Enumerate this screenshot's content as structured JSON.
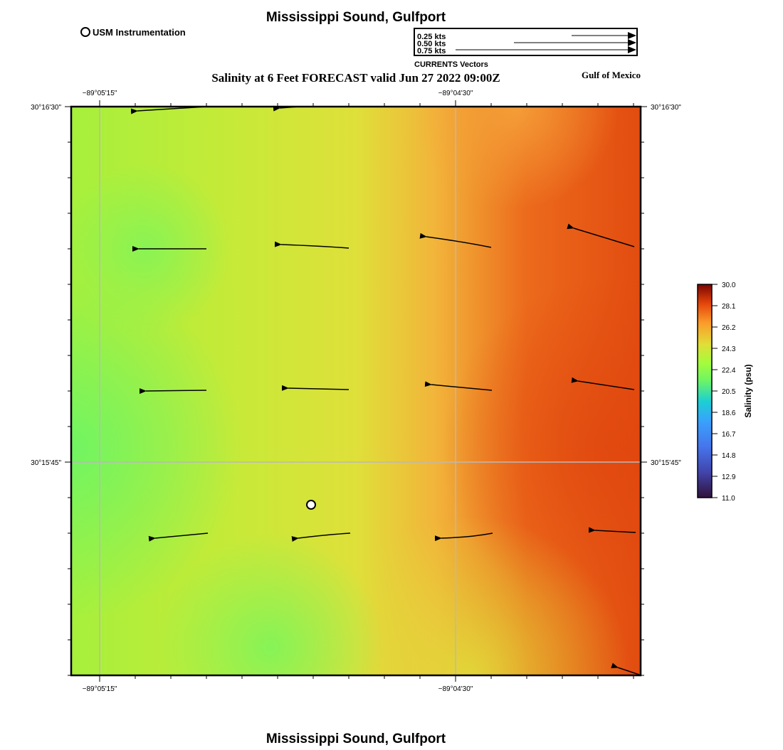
{
  "header": {
    "title": "Mississippi Sound, Gulfport",
    "subtitle": "Salinity at 6 Feet FORECAST valid Jun 27 2022 09:00Z",
    "footer_title": "Mississippi Sound, Gulfport"
  },
  "legend": {
    "station_label": "USM Instrumentation",
    "vector_scale": [
      "0.25 kts",
      "0.50 kts",
      "0.75 kts"
    ],
    "vector_caption": "CURRENTS Vectors",
    "region_label": "Gulf of Mexico"
  },
  "axes": {
    "lon_ticks": [
      "−89°05'15\"",
      "−89°04'30\""
    ],
    "lat_ticks": [
      "30°16'30\"",
      "30°15'45\""
    ]
  },
  "colorbar": {
    "label": "Salinity (psu)",
    "ticks": [
      "30.0",
      "28.1",
      "26.2",
      "24.3",
      "22.4",
      "20.5",
      "18.6",
      "16.7",
      "14.8",
      "12.9",
      "11.0"
    ],
    "min": 11.0,
    "max": 30.0
  },
  "colors": {
    "low_salinity": "#7ef55a",
    "mid_salinity": "#dfe03a",
    "high_salinity": "#e0460e",
    "vector": "#000000"
  }
}
